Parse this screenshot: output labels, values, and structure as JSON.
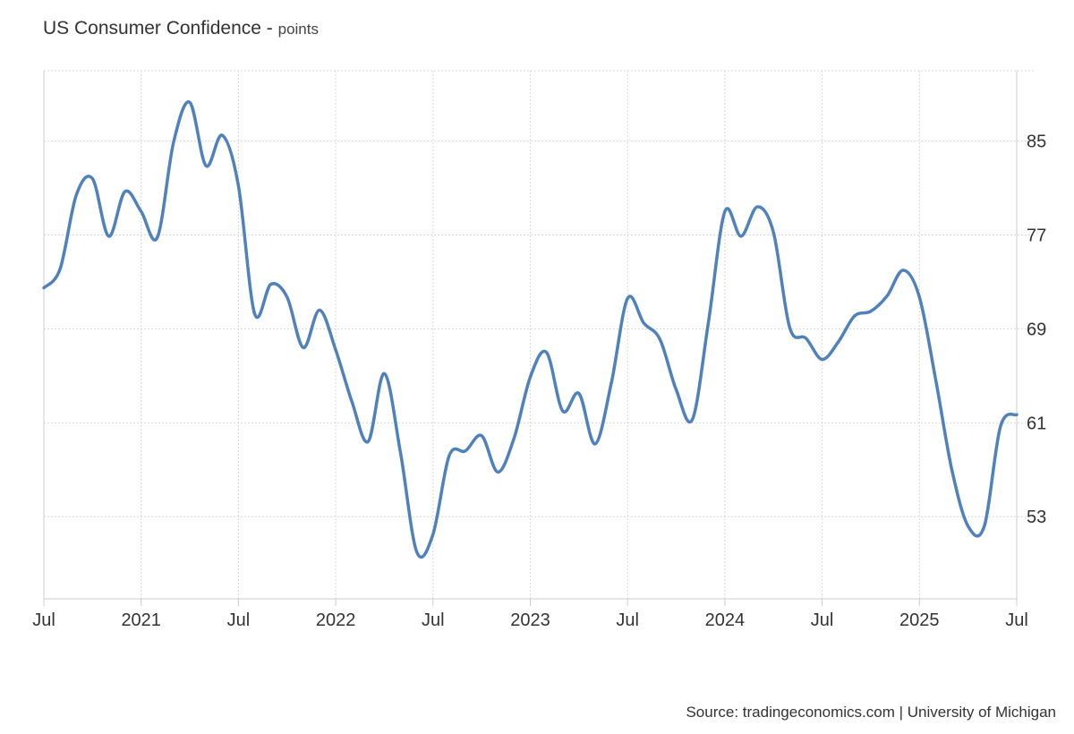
{
  "title": "US Consumer Confidence",
  "unit": "points",
  "source": "Source: tradingeconomics.com | University of Michigan",
  "colors": {
    "line": "#4f81bd",
    "grid": "#d9d9d9",
    "axis": "#cccccc",
    "text": "#333333"
  },
  "chart_data": {
    "type": "line",
    "title": "US Consumer Confidence",
    "subtitle": "points",
    "xlabel": "",
    "ylabel": "",
    "ylim": [
      46,
      91
    ],
    "yticks": [
      53,
      61,
      69,
      77,
      85
    ],
    "xticks": [
      {
        "label": "Jul",
        "date": "2020-07"
      },
      {
        "label": "2021",
        "date": "2021-01"
      },
      {
        "label": "Jul",
        "date": "2021-07"
      },
      {
        "label": "2022",
        "date": "2022-01"
      },
      {
        "label": "Jul",
        "date": "2022-07"
      },
      {
        "label": "2023",
        "date": "2023-01"
      },
      {
        "label": "Jul",
        "date": "2023-07"
      },
      {
        "label": "2024",
        "date": "2024-01"
      },
      {
        "label": "Jul",
        "date": "2024-07"
      },
      {
        "label": "2025",
        "date": "2025-01"
      },
      {
        "label": "Jul",
        "date": "2025-07"
      }
    ],
    "grid": true,
    "y_axis_side": "right",
    "series": [
      {
        "x": [
          "2020-07",
          "2020-08",
          "2020-09",
          "2020-10",
          "2020-11",
          "2020-12",
          "2021-01",
          "2021-02",
          "2021-03",
          "2021-04",
          "2021-05",
          "2021-06",
          "2021-07",
          "2021-08",
          "2021-09",
          "2021-10",
          "2021-11",
          "2021-12",
          "2022-01",
          "2022-02",
          "2022-03",
          "2022-04",
          "2022-05",
          "2022-06",
          "2022-07",
          "2022-08",
          "2022-09",
          "2022-10",
          "2022-11",
          "2022-12",
          "2023-01",
          "2023-02",
          "2023-03",
          "2023-04",
          "2023-05",
          "2023-06",
          "2023-07",
          "2023-08",
          "2023-09",
          "2023-10",
          "2023-11",
          "2023-12",
          "2024-01",
          "2024-02",
          "2024-03",
          "2024-04",
          "2024-05",
          "2024-06",
          "2024-07",
          "2024-08",
          "2024-09",
          "2024-10",
          "2024-11",
          "2024-12",
          "2025-01",
          "2025-02",
          "2025-03",
          "2025-04",
          "2025-05",
          "2025-06",
          "2025-07"
        ],
        "values": [
          72.5,
          74.1,
          80.4,
          81.8,
          76.9,
          80.7,
          79.0,
          76.8,
          84.9,
          88.3,
          82.9,
          85.5,
          81.2,
          70.3,
          72.8,
          71.7,
          67.4,
          70.6,
          67.2,
          62.8,
          59.4,
          65.2,
          58.4,
          50.0,
          51.5,
          58.2,
          58.6,
          59.9,
          56.8,
          59.7,
          64.9,
          67.0,
          62.0,
          63.5,
          59.2,
          64.4,
          71.6,
          69.5,
          68.1,
          63.8,
          61.3,
          69.7,
          79.0,
          76.9,
          79.4,
          77.2,
          69.1,
          68.2,
          66.4,
          67.9,
          70.1,
          70.5,
          71.8,
          74.0,
          71.7,
          64.7,
          57.0,
          52.2,
          52.2,
          60.7,
          61.7
        ]
      }
    ]
  }
}
